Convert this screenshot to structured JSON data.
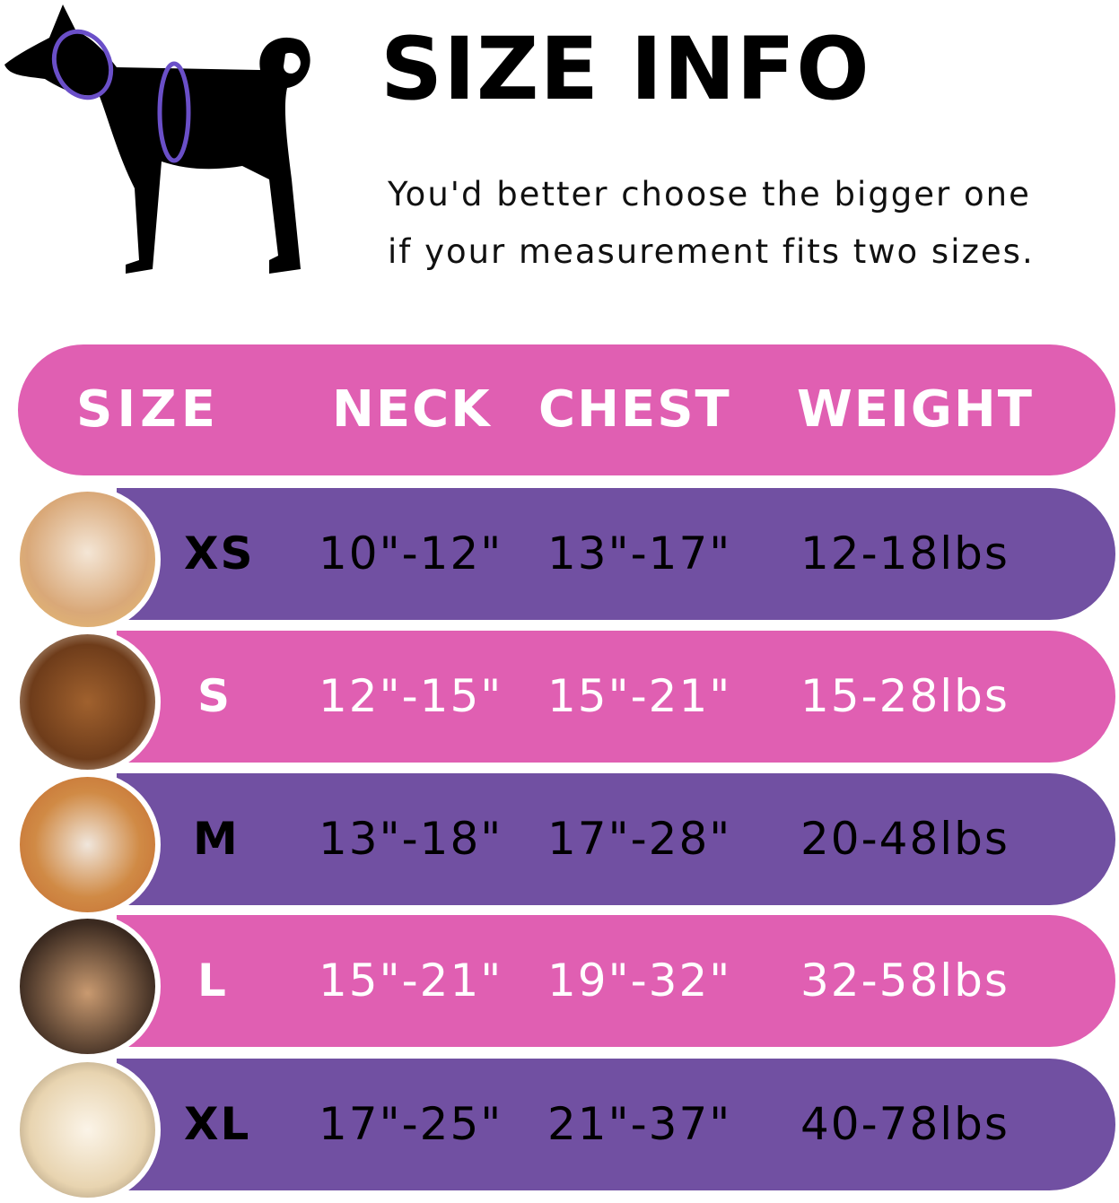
{
  "title": "SIZE INFO",
  "note_line1": "You'd better choose the bigger one",
  "note_line2": "if your measurement fits two sizes.",
  "colors": {
    "pink": "#e05fb2",
    "purple": "#7150a2",
    "measure_ring": "#6a4fc8"
  },
  "table": {
    "headers": [
      "SIZE",
      "NECK",
      "CHEST",
      "WEIGHT"
    ],
    "rows": [
      {
        "size": "XS",
        "neck": "10\"-12\"",
        "chest": "13\"-17\"",
        "weight": "12-18lbs",
        "photo": "pomeranian-photo"
      },
      {
        "size": "S",
        "neck": "12\"-15\"",
        "chest": "15\"-21\"",
        "weight": "15-28lbs",
        "photo": "poodle-photo"
      },
      {
        "size": "M",
        "neck": "13\"-18\"",
        "chest": "17\"-28\"",
        "weight": "20-48lbs",
        "photo": "shiba-photo"
      },
      {
        "size": "L",
        "neck": "15\"-21\"",
        "chest": "19\"-32\"",
        "weight": "32-58lbs",
        "photo": "french-bulldog-photo"
      },
      {
        "size": "XL",
        "neck": "17\"-25\"",
        "chest": "21\"-37\"",
        "weight": "40-78lbs",
        "photo": "labrador-photo"
      }
    ]
  }
}
